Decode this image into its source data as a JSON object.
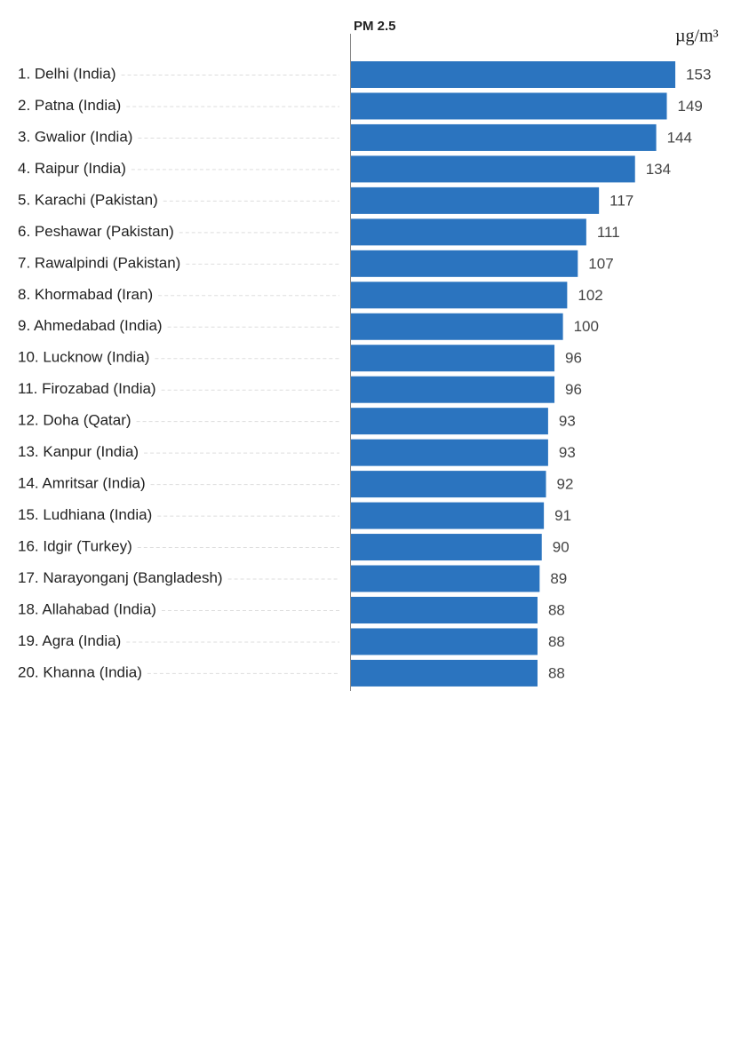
{
  "chart_data": {
    "type": "bar",
    "orientation": "horizontal",
    "title": "PM 2.5",
    "unit": "µg/m³",
    "categories": [
      "1. Delhi (India)",
      "2. Patna (India)",
      "3. Gwalior (India)",
      "4. Raipur (India)",
      "5. Karachi (Pakistan)",
      "6. Peshawar (Pakistan)",
      "7. Rawalpindi (Pakistan)",
      "8. Khormabad (Iran)",
      "9. Ahmedabad (India)",
      "10. Lucknow (India)",
      "11. Firozabad (India)",
      "12. Doha (Qatar)",
      "13. Kanpur (India)",
      "14. Amritsar (India)",
      "15. Ludhiana (India)",
      "16. Idgir (Turkey)",
      "17. Narayonganj (Bangladesh)",
      "18. Allahabad (India)",
      "19. Agra (India)",
      "20. Khanna (India)"
    ],
    "values": [
      153,
      149,
      144,
      134,
      117,
      111,
      107,
      102,
      100,
      96,
      96,
      93,
      93,
      92,
      91,
      90,
      89,
      88,
      88,
      88
    ],
    "color": "#2b74bf"
  }
}
